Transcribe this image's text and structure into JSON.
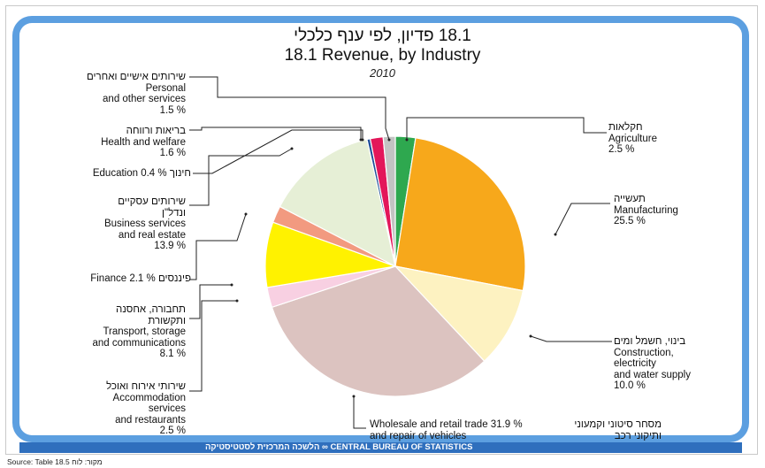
{
  "chart_data": {
    "type": "pie",
    "title_he": "18.1 פדיון, לפי ענף כלכלי",
    "title": "18.1 Revenue, by Industry",
    "subtitle": "2010",
    "unit": "%",
    "slices": [
      {
        "id": "agriculture",
        "he": "חקלאות",
        "lines": [
          "Agriculture",
          "2.5  %"
        ],
        "value": 2.5,
        "color": "#2ea84f"
      },
      {
        "id": "manufacturing",
        "he": "תעשייה",
        "lines": [
          "Manufacturing",
          "25.5  %"
        ],
        "value": 25.5,
        "color": "#f7a81b"
      },
      {
        "id": "construction",
        "he": "בינוי, חשמל ומים",
        "lines": [
          "Construction,",
          "electricity",
          "and water supply",
          "10.0 %"
        ],
        "value": 10.0,
        "color": "#fdf2c1"
      },
      {
        "id": "wholesale",
        "he": "מסחר סיטוני וקמעוני",
        "he2": "ותיקוני רכב",
        "lines": [
          "Wholesale and retail trade  31.9 %",
          "and repair of vehicles"
        ],
        "value": 31.9,
        "color": "#dcc3c0"
      },
      {
        "id": "accommodation",
        "he": "שירותי אירוח ואוכל",
        "lines": [
          "Accommodation",
          "services",
          "and restaurants",
          "2.5  %"
        ],
        "value": 2.5,
        "color": "#f8d0e2"
      },
      {
        "id": "transport",
        "he": "תחבורה, אחסנה",
        "he2": "ותקשורת",
        "lines": [
          "Transport, storage",
          "and communications",
          "8.1  %"
        ],
        "value": 8.1,
        "color": "#fff200"
      },
      {
        "id": "finance",
        "he": "פיננסים",
        "lines": [
          "Finance  2.1 %"
        ],
        "value": 2.1,
        "color": "#f29a80"
      },
      {
        "id": "business",
        "he": "שירותים עסקיים",
        "he2": "ונדל\"ן",
        "lines": [
          "Business services",
          "and real estate",
          "13.9 %"
        ],
        "value": 13.9,
        "color": "#e6efd6"
      },
      {
        "id": "education",
        "he": "חינוך",
        "lines": [
          "Education 0.4 %"
        ],
        "value": 0.4,
        "color": "#1f4e99"
      },
      {
        "id": "health",
        "he": "בריאות ורווחה",
        "lines": [
          "Health and welfare",
          "1.6  %"
        ],
        "value": 1.6,
        "color": "#e3165a"
      },
      {
        "id": "personal",
        "he": "שירותים אישיים ואחרים",
        "lines": [
          "Personal",
          "and other services",
          "1.5 %"
        ],
        "value": 1.5,
        "color": "#c3c3c3"
      }
    ]
  },
  "footer": {
    "text": "הלשכה המרכזית לסטטיסטיקה   ∞   CENTRAL BUREAU OF STATISTICS",
    "source": "Source: Table 18.5 מקור: לוח"
  }
}
